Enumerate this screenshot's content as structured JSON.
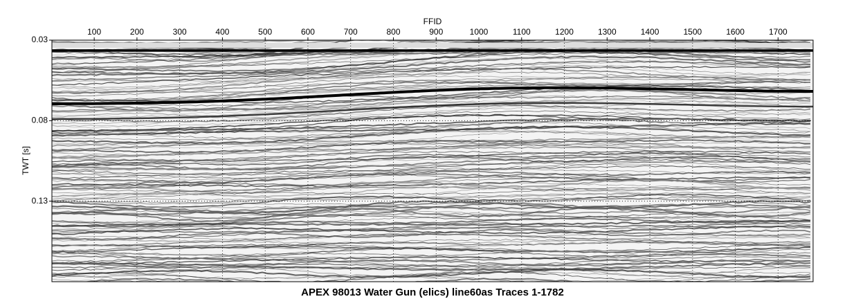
{
  "chart_data": {
    "type": "seismic",
    "title": "APEX 98013 Water Gun (elics) line60as Traces 1-1782",
    "xlabel": "FFID",
    "ylabel": "TWT [s]",
    "xlim": [
      1,
      1782
    ],
    "xticks": [
      100,
      200,
      300,
      400,
      500,
      600,
      700,
      800,
      900,
      1000,
      1100,
      1200,
      1300,
      1400,
      1500,
      1600,
      1700
    ],
    "ylim": [
      0.03,
      0.18
    ],
    "yticks": [
      0.03,
      0.08,
      0.13
    ],
    "grid": true,
    "y_inverted": true
  }
}
